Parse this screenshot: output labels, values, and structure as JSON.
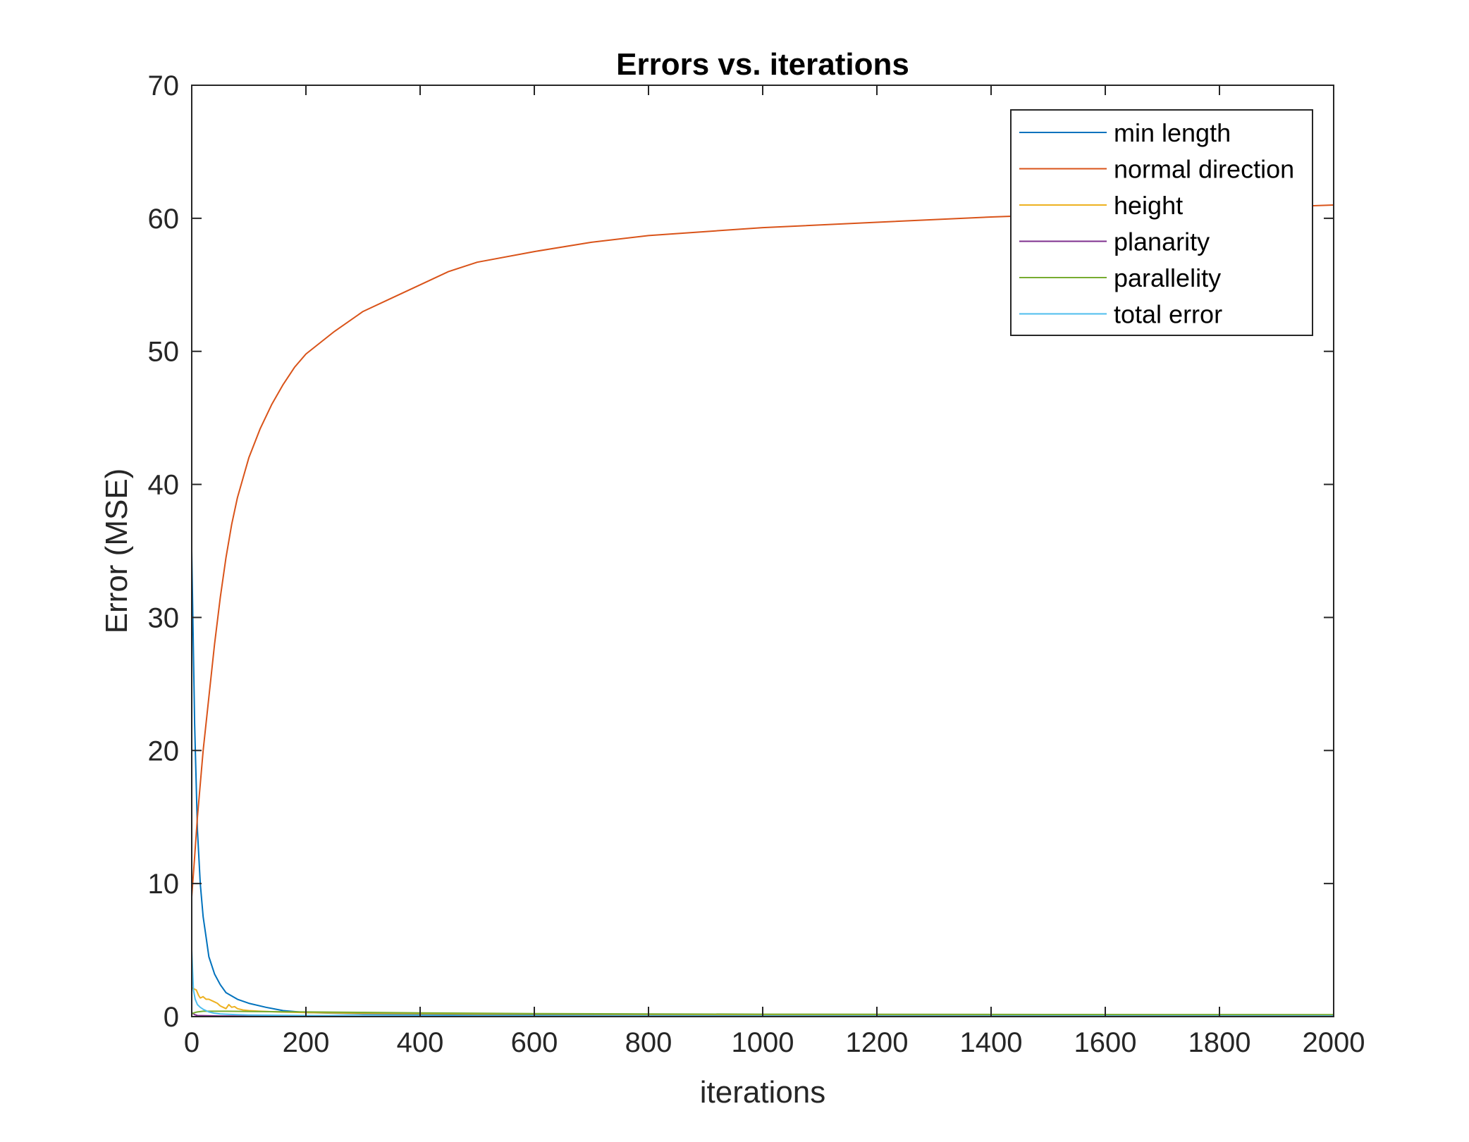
{
  "chart_data": {
    "type": "line",
    "title": "Errors vs. iterations",
    "xlabel": "iterations",
    "ylabel": "Error (MSE)",
    "xlim": [
      0,
      2000
    ],
    "ylim": [
      0,
      70
    ],
    "xticks": [
      0,
      200,
      400,
      600,
      800,
      1000,
      1200,
      1400,
      1600,
      1800,
      2000
    ],
    "xtick_labels": [
      "0",
      "200",
      "400",
      "600",
      "800",
      "1000",
      "1200",
      "1400",
      "1600",
      "1800",
      "2000"
    ],
    "yticks": [
      0,
      10,
      20,
      30,
      40,
      50,
      60,
      70
    ],
    "ytick_labels": [
      "0",
      "10",
      "20",
      "30",
      "40",
      "50",
      "60",
      "70"
    ],
    "grid": false,
    "legend_position": "top-right",
    "series": [
      {
        "name": "min length",
        "color": "#0072BD",
        "x": [
          0,
          2,
          5,
          10,
          15,
          20,
          25,
          30,
          40,
          50,
          60,
          80,
          100,
          130,
          160,
          200,
          300,
          500,
          1000,
          1500,
          2000
        ],
        "y": [
          35,
          30,
          22,
          14,
          10,
          7.5,
          6,
          4.5,
          3.2,
          2.4,
          1.8,
          1.3,
          1.0,
          0.7,
          0.45,
          0.3,
          0.2,
          0.15,
          0.1,
          0.1,
          0.1
        ]
      },
      {
        "name": "normal direction",
        "color": "#D95319",
        "x": [
          0,
          5,
          10,
          20,
          30,
          40,
          50,
          60,
          70,
          80,
          90,
          100,
          120,
          140,
          160,
          180,
          200,
          250,
          300,
          350,
          400,
          450,
          500,
          600,
          700,
          800,
          900,
          1000,
          1200,
          1400,
          1600,
          1800,
          2000
        ],
        "y": [
          9,
          12,
          15,
          20,
          24,
          28,
          31.5,
          34.5,
          37,
          39,
          40.5,
          42,
          44.2,
          46,
          47.5,
          48.8,
          49.8,
          51.5,
          53,
          54,
          55,
          56,
          56.7,
          57.5,
          58.2,
          58.7,
          59,
          59.3,
          59.7,
          60.1,
          60.4,
          60.7,
          61
        ]
      },
      {
        "name": "height",
        "color": "#EDB120",
        "x": [
          0,
          3,
          8,
          12,
          15,
          20,
          25,
          30,
          35,
          40,
          45,
          50,
          55,
          60,
          65,
          70,
          75,
          80,
          90,
          100,
          120,
          150,
          200,
          300,
          500,
          1000,
          2000
        ],
        "y": [
          2.2,
          2.1,
          2.0,
          1.6,
          1.4,
          1.5,
          1.3,
          1.3,
          1.2,
          1.1,
          1.0,
          0.8,
          0.7,
          0.6,
          0.9,
          0.7,
          0.75,
          0.6,
          0.5,
          0.45,
          0.4,
          0.35,
          0.3,
          0.25,
          0.2,
          0.15,
          0.1
        ]
      },
      {
        "name": "planarity",
        "color": "#7E2F8E",
        "x": [
          0,
          5,
          10,
          50,
          100,
          500,
          1000,
          2000
        ],
        "y": [
          0.3,
          0.15,
          0.08,
          0.05,
          0.04,
          0.03,
          0.02,
          0.02
        ]
      },
      {
        "name": "parallelity",
        "color": "#77AC30",
        "x": [
          0,
          5,
          10,
          20,
          40,
          60,
          100,
          200,
          300,
          400,
          500,
          600,
          800,
          1000,
          1500,
          2000
        ],
        "y": [
          0.2,
          0.3,
          0.35,
          0.4,
          0.4,
          0.4,
          0.38,
          0.35,
          0.32,
          0.28,
          0.25,
          0.22,
          0.2,
          0.18,
          0.16,
          0.15
        ]
      },
      {
        "name": "total error",
        "color": "#4DBEEE",
        "x": [
          0,
          3,
          6,
          10,
          15,
          20,
          25,
          30,
          40,
          50,
          60,
          80,
          100,
          150,
          200,
          300,
          500,
          1000,
          2000
        ],
        "y": [
          5,
          2.0,
          1.3,
          0.9,
          0.7,
          0.55,
          0.45,
          0.35,
          0.25,
          0.2,
          0.18,
          0.15,
          0.12,
          0.1,
          0.08,
          0.07,
          0.06,
          0.05,
          0.05
        ]
      }
    ]
  }
}
